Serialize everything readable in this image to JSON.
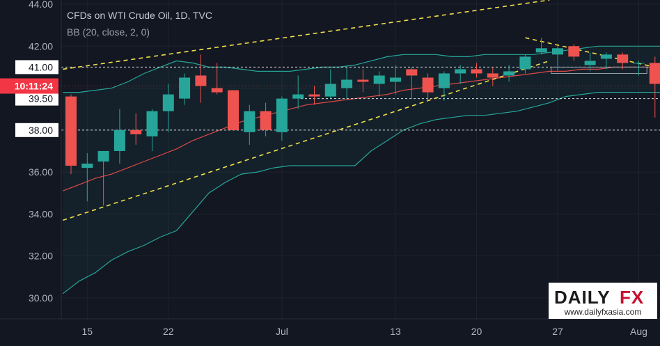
{
  "chart_data": {
    "type": "candlestick",
    "title": "CFDs on WTI Crude Oil, 1D, TVC",
    "indicator": "BB (20, close, 2, 0)",
    "current_time_label": "10:11:24",
    "ylim": [
      29.0,
      44.2
    ],
    "y_ticks": [
      30.0,
      32.0,
      34.0,
      36.0,
      38.0,
      40.0,
      42.0,
      44.0
    ],
    "y_tick_labels": [
      "30.00",
      "32.00",
      "34.00",
      "36.00",
      "38.00",
      "40.00",
      "42.00",
      "44.00"
    ],
    "highlighted_levels": [
      {
        "value": 41.0,
        "label": "41.00"
      },
      {
        "value": 39.5,
        "label": "39.50"
      },
      {
        "value": 38.0,
        "label": "38.00"
      }
    ],
    "x_ticks": [
      {
        "index": 1,
        "label": "15"
      },
      {
        "index": 6,
        "label": "22"
      },
      {
        "index": 13,
        "label": "Jul"
      },
      {
        "index": 20,
        "label": "13"
      },
      {
        "index": 25,
        "label": "20"
      },
      {
        "index": 30,
        "label": "27"
      },
      {
        "index": 35,
        "label": "Aug"
      }
    ],
    "candles": [
      {
        "o": 39.6,
        "h": 39.7,
        "l": 35.9,
        "c": 36.3
      },
      {
        "o": 36.2,
        "h": 36.9,
        "l": 34.6,
        "c": 36.4
      },
      {
        "o": 36.5,
        "h": 37.0,
        "l": 34.4,
        "c": 37.0
      },
      {
        "o": 37.0,
        "h": 39.0,
        "l": 36.4,
        "c": 38.0
      },
      {
        "o": 38.0,
        "h": 38.8,
        "l": 37.3,
        "c": 37.8
      },
      {
        "o": 37.7,
        "h": 39.0,
        "l": 37.0,
        "c": 38.9
      },
      {
        "o": 38.9,
        "h": 40.2,
        "l": 37.9,
        "c": 39.7
      },
      {
        "o": 39.5,
        "h": 40.7,
        "l": 39.2,
        "c": 40.5
      },
      {
        "o": 40.6,
        "h": 41.6,
        "l": 39.3,
        "c": 40.1
      },
      {
        "o": 40.0,
        "h": 41.2,
        "l": 39.7,
        "c": 39.8
      },
      {
        "o": 39.9,
        "h": 39.9,
        "l": 38.0,
        "c": 38.0
      },
      {
        "o": 37.9,
        "h": 39.2,
        "l": 37.3,
        "c": 38.9
      },
      {
        "o": 38.9,
        "h": 39.3,
        "l": 37.7,
        "c": 38.0
      },
      {
        "o": 37.9,
        "h": 39.6,
        "l": 37.5,
        "c": 39.5
      },
      {
        "o": 39.5,
        "h": 40.6,
        "l": 39.0,
        "c": 39.7
      },
      {
        "o": 39.7,
        "h": 40.1,
        "l": 39.2,
        "c": 39.6
      },
      {
        "o": 39.6,
        "h": 40.9,
        "l": 39.5,
        "c": 40.2
      },
      {
        "o": 40.0,
        "h": 41.0,
        "l": 39.5,
        "c": 40.4
      },
      {
        "o": 40.4,
        "h": 40.9,
        "l": 39.8,
        "c": 40.3
      },
      {
        "o": 40.2,
        "h": 40.8,
        "l": 39.6,
        "c": 40.6
      },
      {
        "o": 40.3,
        "h": 41.1,
        "l": 39.7,
        "c": 40.5
      },
      {
        "o": 40.9,
        "h": 41.0,
        "l": 39.5,
        "c": 40.6
      },
      {
        "o": 40.5,
        "h": 40.7,
        "l": 39.4,
        "c": 39.8
      },
      {
        "o": 40.0,
        "h": 40.8,
        "l": 39.4,
        "c": 40.7
      },
      {
        "o": 40.7,
        "h": 41.1,
        "l": 40.2,
        "c": 40.9
      },
      {
        "o": 40.9,
        "h": 41.2,
        "l": 40.5,
        "c": 40.7
      },
      {
        "o": 40.7,
        "h": 41.0,
        "l": 40.1,
        "c": 40.5
      },
      {
        "o": 40.6,
        "h": 41.1,
        "l": 40.3,
        "c": 40.8
      },
      {
        "o": 40.9,
        "h": 41.6,
        "l": 40.7,
        "c": 41.5
      },
      {
        "o": 41.7,
        "h": 42.4,
        "l": 41.6,
        "c": 41.9
      },
      {
        "o": 41.6,
        "h": 42.0,
        "l": 40.8,
        "c": 41.9
      },
      {
        "o": 42.0,
        "h": 42.1,
        "l": 41.3,
        "c": 41.5
      },
      {
        "o": 41.1,
        "h": 41.7,
        "l": 40.8,
        "c": 41.3
      },
      {
        "o": 41.4,
        "h": 41.7,
        "l": 40.9,
        "c": 41.6
      },
      {
        "o": 41.6,
        "h": 41.7,
        "l": 40.9,
        "c": 41.2
      },
      {
        "o": 41.2,
        "h": 41.3,
        "l": 40.6,
        "c": 41.2
      },
      {
        "o": 41.2,
        "h": 41.5,
        "l": 38.6,
        "c": 40.2
      },
      {
        "o": 40.2,
        "h": 40.3,
        "l": 40.0,
        "c": 40.1
      }
    ],
    "bollinger": {
      "upper": [
        39.8,
        39.8,
        39.9,
        40.0,
        40.3,
        40.7,
        41.0,
        41.3,
        41.2,
        41.0,
        41.0,
        40.9,
        40.8,
        40.8,
        40.8,
        40.9,
        41.0,
        41.0,
        41.1,
        41.3,
        41.5,
        41.6,
        41.6,
        41.6,
        41.5,
        41.5,
        41.6,
        41.6,
        41.6,
        41.6,
        41.7,
        41.8,
        41.9,
        42.0,
        42.0,
        42.0,
        42.0,
        42.0
      ],
      "middle": [
        35.1,
        35.4,
        35.7,
        35.9,
        36.2,
        36.5,
        36.8,
        37.1,
        37.5,
        37.8,
        38.1,
        38.4,
        38.6,
        38.8,
        39.0,
        39.2,
        39.3,
        39.4,
        39.5,
        39.6,
        39.7,
        39.9,
        40.0,
        40.1,
        40.2,
        40.3,
        40.4,
        40.5,
        40.6,
        40.7,
        40.8,
        40.8,
        40.9,
        40.9,
        41.0,
        41.0,
        41.0,
        41.0
      ],
      "lower": [
        30.2,
        30.8,
        31.2,
        31.8,
        32.2,
        32.5,
        32.9,
        33.2,
        34.1,
        35.0,
        35.5,
        35.9,
        36.0,
        36.2,
        36.3,
        36.3,
        36.3,
        36.3,
        36.3,
        37.0,
        37.5,
        38.0,
        38.3,
        38.5,
        38.6,
        38.7,
        38.7,
        38.8,
        38.9,
        39.1,
        39.3,
        39.6,
        39.7,
        39.8,
        39.8,
        39.8,
        39.8,
        39.8
      ]
    },
    "trendlines": [
      {
        "from": {
          "index": -0.5,
          "value": 40.9
        },
        "to": {
          "index": 29.5,
          "value": 44.2
        }
      },
      {
        "from": {
          "index": -0.5,
          "value": 33.7
        },
        "to": {
          "index": 29.5,
          "value": 41.3
        }
      },
      {
        "from": {
          "index": 28.0,
          "value": 42.4
        },
        "to": {
          "index": 36.0,
          "value": 41.0
        }
      }
    ],
    "colors": {
      "background": "#131722",
      "bull": "#26a69a",
      "bear": "#ef5350",
      "bb_band": "#26a69a",
      "bb_basis": "#e04848",
      "trendline": "#f2e04b",
      "current_price": "#f23645",
      "level_line": "#ffffff",
      "grid": "#1e222d",
      "axis_text": "#b2b5be"
    }
  },
  "watermark": {
    "brand_left": "DAILY",
    "brand_right": "FX",
    "url": "www.dailyfxasia.com"
  }
}
